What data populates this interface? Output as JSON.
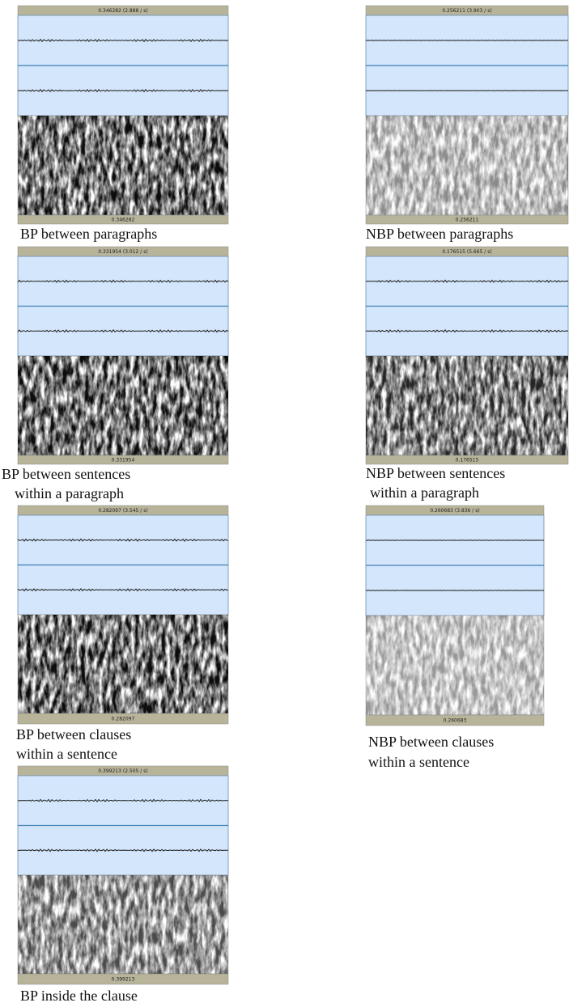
{
  "figure": {
    "panels": [
      {
        "top_label": "0.346282 (2.888 / s)",
        "bottom_label": "0.346282",
        "caption": [
          "BP between paragraphs"
        ]
      },
      {
        "top_label": "0.256211 (3.903 / s)",
        "bottom_label": "0.256211",
        "caption": [
          "NBP between paragraphs"
        ]
      },
      {
        "top_label": "0.331954 (3.012 / s)",
        "bottom_label": "0.331954",
        "caption": [
          "BP between sentences",
          "within a paragraph"
        ]
      },
      {
        "top_label": "0.176515 (5.665 / s)",
        "bottom_label": "0.176515",
        "caption": [
          "NBP between sentences",
          "within a paragraph"
        ]
      },
      {
        "top_label": "0.282097 (3.545 / s)",
        "bottom_label": "0.282097",
        "caption": [
          "BP between clauses",
          "within a sentence"
        ]
      },
      {
        "top_label": "0.260683 (3.836 / s)",
        "bottom_label": "0.260683",
        "caption": [
          "NBP between clauses",
          "within a sentence"
        ]
      },
      {
        "top_label": "0.399213 (2.505 / s)",
        "bottom_label": "0.399213",
        "caption": [
          "BP inside the clause"
        ]
      }
    ]
  }
}
